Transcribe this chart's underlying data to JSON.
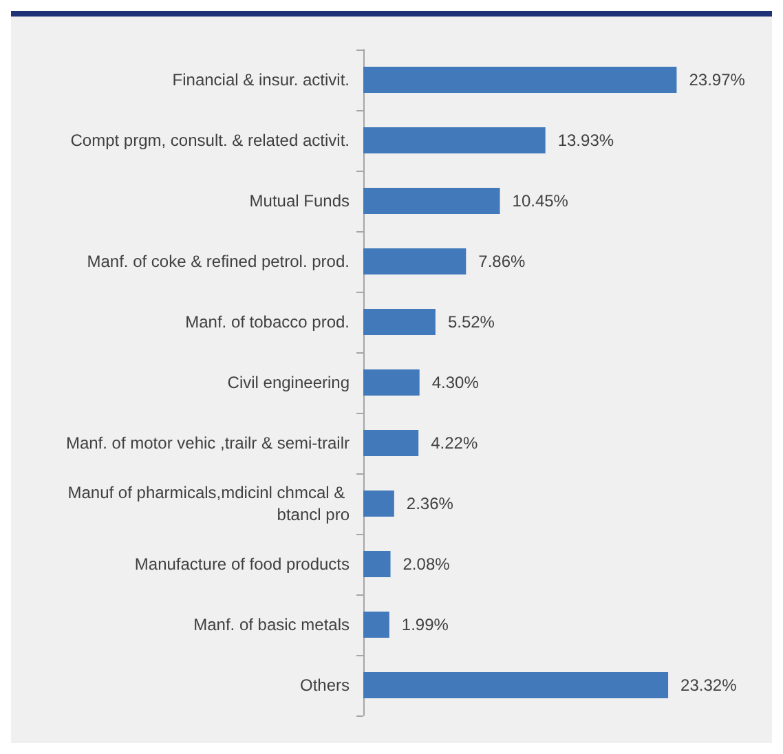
{
  "chart_data": {
    "type": "bar",
    "orientation": "horizontal",
    "categories": [
      "Financial & insur. activit.",
      "Compt prgm, consult. & related activit.",
      "Mutual Funds",
      "Manf. of coke & refined petrol. prod.",
      "Manf. of tobacco prod.",
      "Civil engineering",
      "Manf. of motor vehic ,trailr & semi-trailr",
      "Manuf of pharmicals,mdicinl chmcal & btancl pro",
      "Manufacture of food products",
      "Manf. of basic metals",
      "Others"
    ],
    "values": [
      23.97,
      13.93,
      10.45,
      7.86,
      5.52,
      4.3,
      4.22,
      2.36,
      2.08,
      1.99,
      23.32
    ],
    "value_labels": [
      "23.97%",
      "13.93%",
      "10.45%",
      "7.86%",
      "5.52%",
      "4.30%",
      "4.22%",
      "2.36%",
      "2.08%",
      "1.99%",
      "23.32%"
    ],
    "color": "#4179bb"
  }
}
